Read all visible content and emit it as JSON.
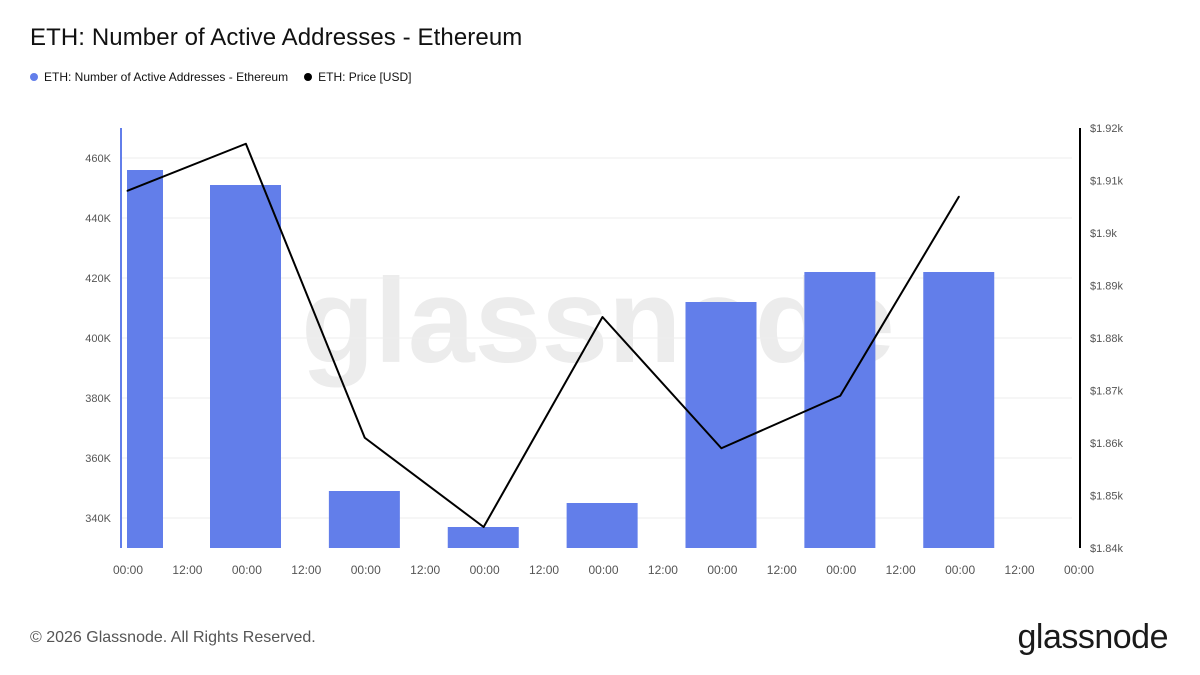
{
  "title": "ETH: Number of Active Addresses - Ethereum",
  "legend": [
    {
      "label": "ETH: Number of Active Addresses - Ethereum",
      "color": "#627EEA"
    },
    {
      "label": "ETH: Price [USD]",
      "color": "#000000"
    }
  ],
  "watermark": "glassnode",
  "footer": "© 2026 Glassnode. All Rights Reserved.",
  "brand": "glassnode",
  "chart_data": {
    "type": "bar",
    "x_tick_labels": [
      "00:00",
      "12:00",
      "00:00",
      "12:00",
      "00:00",
      "12:00",
      "00:00",
      "12:00",
      "00:00",
      "12:00",
      "00:00",
      "12:00",
      "00:00",
      "12:00",
      "00:00",
      "12:00",
      "00:00"
    ],
    "y_left": {
      "ticks": [
        "340K",
        "360K",
        "380K",
        "400K",
        "420K",
        "440K",
        "460K"
      ],
      "range": [
        330000,
        470000
      ]
    },
    "y_right": {
      "ticks": [
        "$1.84k",
        "$1.85k",
        "$1.86k",
        "$1.87k",
        "$1.88k",
        "$1.89k",
        "$1.9k",
        "$1.91k",
        "$1.92k"
      ],
      "range": [
        1840,
        1920
      ]
    },
    "grid": true,
    "series": [
      {
        "name": "ETH: Number of Active Addresses - Ethereum",
        "type": "bar",
        "color": "#627EEA",
        "axis": "left",
        "values": [
          456000,
          451000,
          349000,
          337000,
          345000,
          412000,
          422000,
          422000
        ]
      },
      {
        "name": "ETH: Price [USD]",
        "type": "line",
        "color": "#000000",
        "axis": "right",
        "values": [
          1908,
          1917,
          1861,
          1844,
          1884,
          1859,
          1869,
          1907
        ]
      }
    ]
  }
}
